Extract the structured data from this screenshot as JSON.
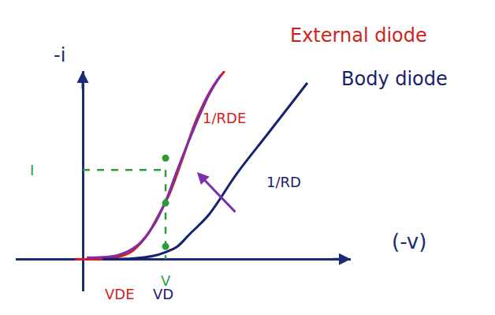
{
  "chart_data": {
    "type": "line",
    "x_label": "(-v)",
    "y_label": "-i",
    "xlim": [
      -2.5,
      10
    ],
    "ylim": [
      -1.2,
      7
    ],
    "xticks": [],
    "yticks": [],
    "tick_labels": false,
    "grid": false,
    "series": [
      {
        "color": "#d11f1f",
        "line_style": "solid",
        "x": [
          -0.29,
          1.03,
          1.76,
          2.35,
          2.79,
          3.24,
          3.68,
          4.26,
          4.85,
          5.29
        ],
        "values": [
          0,
          0.03,
          0.24,
          0.82,
          1.56,
          2.44,
          3.62,
          5.24,
          6.41,
          7.0
        ]
      },
      {
        "color": "#7b2fa8",
        "line_style": "solid",
        "x": [
          0.15,
          1.32,
          2.06,
          2.65,
          3.09,
          3.53,
          4.12,
          4.71,
          5.15
        ],
        "values": [
          0.06,
          0.15,
          0.53,
          1.26,
          2.15,
          3.32,
          4.79,
          6.12,
          6.85
        ]
      },
      {
        "color": "#16226e",
        "line_style": "solid",
        "x": [
          0.74,
          1.91,
          2.65,
          3.09,
          3.53,
          3.97,
          4.71,
          5.74,
          6.91,
          8.38
        ],
        "values": [
          0,
          0.03,
          0.12,
          0.26,
          0.47,
          0.91,
          1.66,
          3.17,
          4.67,
          6.56
        ]
      },
      {
        "color": "#2a9d3a",
        "marker": "circle",
        "x": [
          3.09,
          3.09,
          3.09
        ],
        "values": [
          3.76,
          2.09,
          0.47
        ]
      }
    ],
    "operating_point": {
      "x": 3.09,
      "y": 3.32,
      "color": "#2a9d3a",
      "line_style": "dashed"
    },
    "annotations": [
      {
        "text": "External diode",
        "x": 10.29,
        "y": 8.32,
        "color": "#d11f1f"
      },
      {
        "text": "Body diode",
        "x": 11.62,
        "y": 6.71,
        "color": "#16226e"
      },
      {
        "text": "1/RDE",
        "x": 5.29,
        "y": 5.24,
        "color": "#d11f1f"
      },
      {
        "text": "1/RD",
        "x": 7.5,
        "y": 2.88,
        "color": "#16226e"
      },
      {
        "text": "I",
        "x": -1.91,
        "y": 3.32,
        "color": "#2a9d3a"
      },
      {
        "text": "V",
        "x": 3.09,
        "y": -0.8,
        "color": "#2a9d3a"
      },
      {
        "text": "VDE",
        "x": 1.38,
        "y": -1.3,
        "color": "#d11f1f"
      },
      {
        "text": "VD",
        "x": 3.0,
        "y": -1.3,
        "color": "#16226e"
      }
    ]
  }
}
